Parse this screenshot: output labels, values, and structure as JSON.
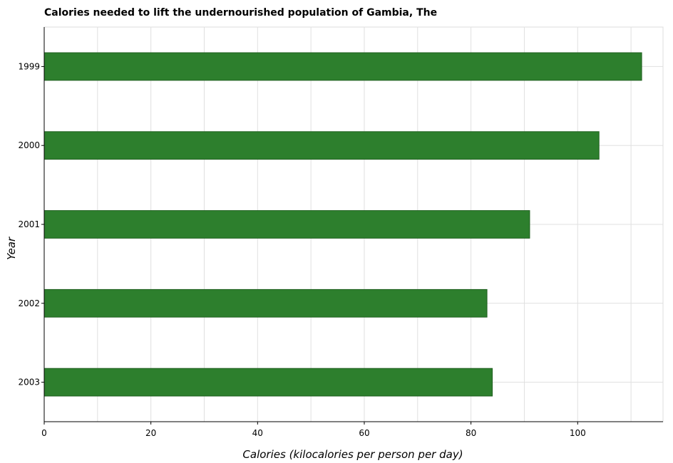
{
  "chart_data": {
    "type": "bar",
    "orientation": "horizontal",
    "title": "Calories needed to lift the undernourished population of Gambia, The",
    "xlabel": "Calories (kilocalories per person per day)",
    "ylabel": "Year",
    "categories": [
      "1999",
      "2000",
      "2001",
      "2002",
      "2003"
    ],
    "values": [
      112,
      104,
      91,
      83,
      84
    ],
    "xlim": [
      0,
      116
    ],
    "xticks": [
      0,
      20,
      40,
      60,
      80,
      100
    ],
    "grid": true,
    "bar_color": "#2d7f2d"
  }
}
